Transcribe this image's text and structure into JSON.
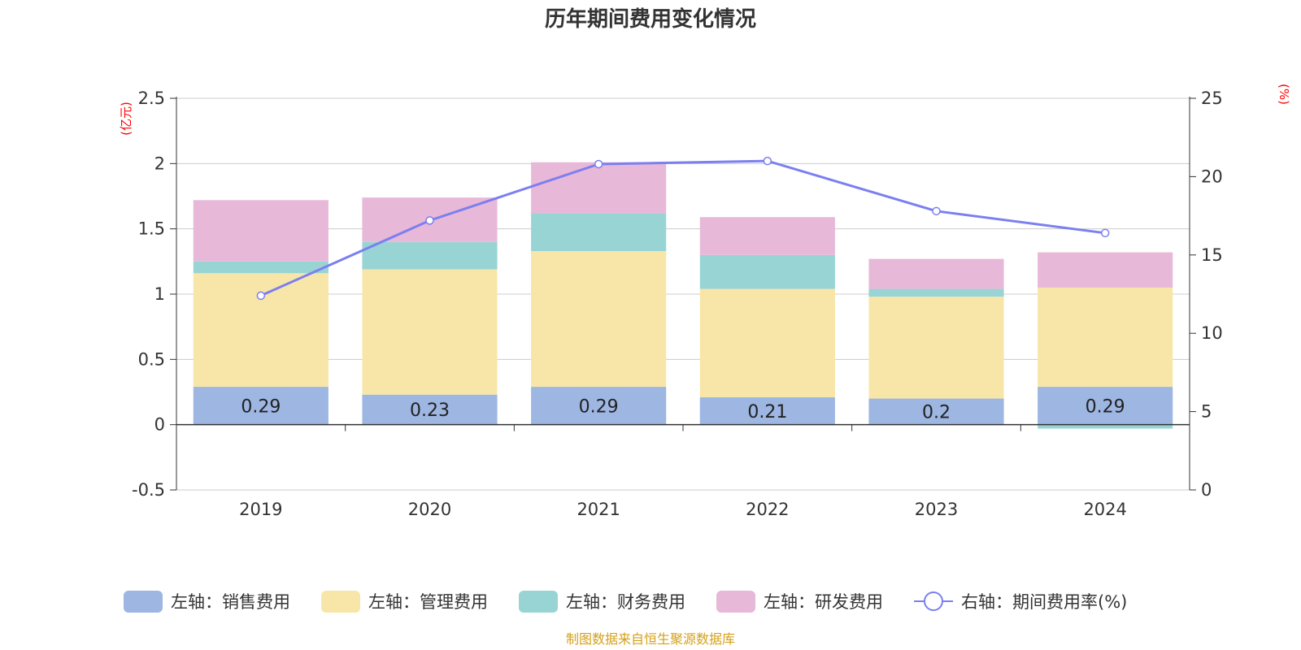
{
  "chart_data": {
    "type": "bar",
    "title": "历年期间费用变化情况",
    "left_unit": "(亿元)",
    "right_unit": "(%)",
    "categories": [
      "2019",
      "2020",
      "2021",
      "2022",
      "2023",
      "2024"
    ],
    "left_axis": {
      "min": -0.5,
      "max": 2.5,
      "ticks": [
        "-0.5",
        "0",
        "0.5",
        "1",
        "1.5",
        "2",
        "2.5"
      ]
    },
    "right_axis": {
      "min": 0,
      "max": 25,
      "ticks": [
        "0",
        "5",
        "10",
        "15",
        "20",
        "25"
      ]
    },
    "grid": true,
    "legend_position": "bottom",
    "series": [
      {
        "name": "左轴：销售费用",
        "type": "bar",
        "stack": "left",
        "color": "#9db6e2",
        "values": [
          0.29,
          0.23,
          0.29,
          0.21,
          0.2,
          0.29
        ],
        "labels": [
          "0.29",
          "0.23",
          "0.29",
          "0.21",
          "0.2",
          "0.29"
        ]
      },
      {
        "name": "左轴：管理费用",
        "type": "bar",
        "stack": "left",
        "color": "#f8e6a8",
        "values": [
          0.87,
          0.96,
          1.04,
          0.83,
          0.78,
          0.76
        ]
      },
      {
        "name": "左轴：财务费用",
        "type": "bar",
        "stack": "left",
        "color": "#98d4d4",
        "values": [
          0.09,
          0.21,
          0.29,
          0.26,
          0.06,
          -0.03
        ]
      },
      {
        "name": "左轴：研发费用",
        "type": "bar",
        "stack": "left",
        "color": "#e8b8d8",
        "values": [
          0.47,
          0.34,
          0.39,
          0.29,
          0.23,
          0.27
        ]
      },
      {
        "name": "右轴：期间费用率(%)",
        "type": "line",
        "axis": "right",
        "color": "#7b7ff0",
        "values": [
          12.4,
          17.2,
          20.8,
          21.0,
          17.8,
          16.4
        ]
      }
    ]
  },
  "source": "制图数据来自恒生聚源数据库",
  "colors": {
    "unit_red": "#ff0000",
    "source_gold": "#d4a017",
    "grid": "#cccccc",
    "axis": "#333333"
  }
}
